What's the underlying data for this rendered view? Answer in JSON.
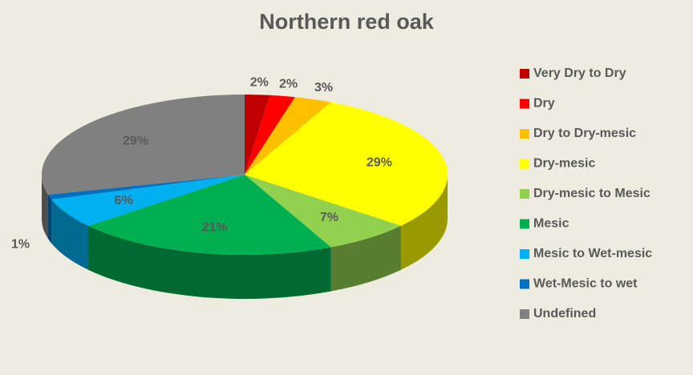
{
  "chart_data": {
    "type": "pie",
    "title": "Northern red oak",
    "categories": [
      "Very Dry to Dry",
      "Dry",
      "Dry to Dry-mesic",
      "Dry-mesic",
      "Dry-mesic to Mesic",
      "Mesic",
      "Mesic to Wet-mesic",
      "Wet-Mesic to wet",
      "Undefined"
    ],
    "values": [
      2,
      2,
      3,
      29,
      7,
      21,
      6,
      1,
      29
    ],
    "value_labels": [
      "2%",
      "2%",
      "3%",
      "29%",
      "7%",
      "21%",
      "6%",
      "1%",
      "29%"
    ],
    "colors": [
      "#c00000",
      "#ff0000",
      "#ffc000",
      "#ffff00",
      "#92d050",
      "#00b050",
      "#00b0f0",
      "#0070c0",
      "#808080"
    ],
    "legend": "right"
  }
}
